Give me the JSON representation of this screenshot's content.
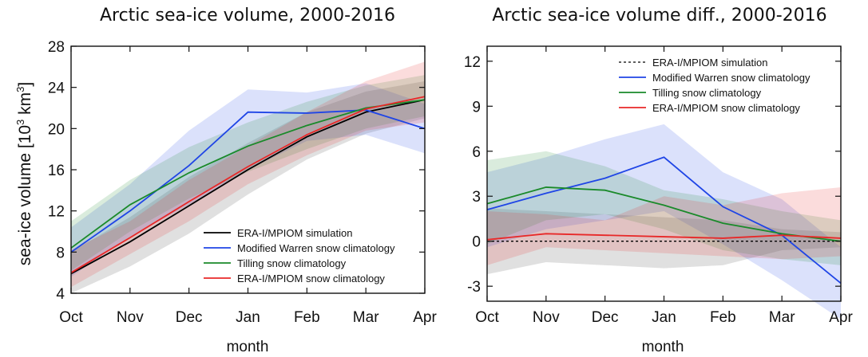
{
  "chart_data": [
    {
      "type": "line",
      "title": "Arctic sea-ice volume, 2000-2016",
      "xlabel": "month",
      "ylabel": "sea-ice volume [10",
      "ylabel_sup": "3",
      "ylabel_tail": " km",
      "ylabel_sup2": "3",
      "ylabel_close": "]",
      "categories": [
        "Oct",
        "Nov",
        "Dec",
        "Jan",
        "Feb",
        "Mar",
        "Apr"
      ],
      "ylim": [
        4,
        28
      ],
      "yticks": [
        "4",
        "8",
        "12",
        "16",
        "20",
        "24",
        "28"
      ],
      "legend_position": "lower-right",
      "series": [
        {
          "name": "ERA-I/MPIOM simulation",
          "color": "#000000",
          "dashed": false,
          "values": [
            5.9,
            9.0,
            12.5,
            16.0,
            19.2,
            21.6,
            22.8
          ],
          "band": {
            "lower": [
              4.0,
              6.6,
              9.8,
              13.6,
              17.0,
              19.5,
              21.0
            ],
            "upper": [
              8.0,
              11.4,
              15.3,
              18.6,
              21.6,
              23.6,
              24.6
            ]
          }
        },
        {
          "name": "Modified Warren snow climatology",
          "color": "#1f45e6",
          "dashed": false,
          "values": [
            8.0,
            12.0,
            16.4,
            21.6,
            21.5,
            21.8,
            20.0
          ],
          "band": {
            "lower": [
              5.6,
              9.5,
              12.6,
              16.0,
              18.8,
              19.4,
              17.6
            ],
            "upper": [
              10.4,
              14.6,
              19.8,
              23.8,
              23.5,
              24.4,
              22.4
            ]
          }
        },
        {
          "name": "Tilling snow climatology",
          "color": "#1a8a2a",
          "dashed": false,
          "values": [
            8.4,
            12.6,
            15.7,
            18.3,
            20.3,
            22.0,
            22.8
          ],
          "band": {
            "lower": [
              6.2,
              10.0,
              13.2,
              15.8,
              18.0,
              20.0,
              21.2
            ],
            "upper": [
              11.0,
              15.0,
              18.2,
              20.6,
              22.6,
              24.2,
              25.2
            ]
          }
        },
        {
          "name": "ERA-I/MPIOM snow climatology",
          "color": "#e82828",
          "dashed": false,
          "values": [
            6.0,
            9.4,
            12.9,
            16.3,
            19.4,
            21.9,
            23.1
          ],
          "band": {
            "lower": [
              4.6,
              7.8,
              11.0,
              14.6,
              17.4,
              19.8,
              20.6
            ],
            "upper": [
              8.2,
              11.0,
              15.0,
              18.3,
              21.6,
              24.6,
              26.5
            ]
          }
        }
      ]
    },
    {
      "type": "line",
      "title": "Arctic sea-ice volume diff., 2000-2016",
      "xlabel": "month",
      "categories": [
        "Oct",
        "Nov",
        "Dec",
        "Jan",
        "Feb",
        "Mar",
        "Apr"
      ],
      "ylim": [
        -4,
        13
      ],
      "yticks": [
        "-3",
        "0",
        "3",
        "6",
        "9",
        "12"
      ],
      "legend_position": "top-right",
      "series": [
        {
          "name": "ERA-I/MPIOM simulation",
          "color": "#000000",
          "dashed": true,
          "values": [
            0,
            0,
            0,
            0,
            0,
            0,
            0
          ],
          "band": {
            "lower": [
              -2.2,
              -1.4,
              -1.6,
              -1.8,
              -1.6,
              -0.6,
              -0.4
            ],
            "upper": [
              2.2,
              2.0,
              1.8,
              1.6,
              1.4,
              0.8,
              0.6
            ]
          }
        },
        {
          "name": "Modified Warren snow climatology",
          "color": "#1f45e6",
          "dashed": false,
          "values": [
            2.1,
            3.2,
            4.2,
            5.6,
            2.3,
            0.4,
            -2.8
          ],
          "band": {
            "lower": [
              -0.4,
              0.8,
              1.4,
              2.0,
              -0.2,
              -2.6,
              -5.2
            ],
            "upper": [
              4.6,
              5.6,
              6.8,
              7.8,
              4.6,
              2.8,
              -0.4
            ]
          }
        },
        {
          "name": "Tilling snow climatology",
          "color": "#1a8a2a",
          "dashed": false,
          "values": [
            2.5,
            3.6,
            3.4,
            2.4,
            1.2,
            0.5,
            0.0
          ],
          "band": {
            "lower": [
              -0.2,
              1.4,
              1.8,
              0.8,
              -0.6,
              -1.2,
              -1.6
            ],
            "upper": [
              5.4,
              6.0,
              5.0,
              3.4,
              2.8,
              2.0,
              1.4
            ]
          }
        },
        {
          "name": "ERA-I/MPIOM snow climatology",
          "color": "#e82828",
          "dashed": false,
          "values": [
            0.1,
            0.5,
            0.4,
            0.3,
            0.2,
            0.4,
            0.2
          ],
          "band": {
            "lower": [
              -1.6,
              -0.4,
              -0.6,
              -0.8,
              -1.0,
              -1.2,
              -1.0
            ],
            "upper": [
              2.0,
              1.8,
              1.4,
              3.0,
              2.4,
              3.2,
              3.6
            ]
          }
        }
      ]
    }
  ]
}
